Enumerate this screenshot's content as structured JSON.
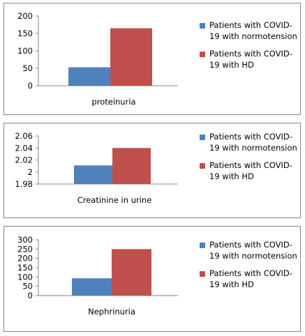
{
  "colors": {
    "series1": "#4f81bd",
    "series2": "#c0504d",
    "axis": "#868686"
  },
  "chart_data": [
    {
      "type": "bar",
      "categories": [
        "proteinuria"
      ],
      "series": [
        {
          "name": "Patients with COVID-19 with normotension",
          "values": [
            53
          ]
        },
        {
          "name": "Patients with COVID-19 with HD",
          "values": [
            165
          ]
        }
      ],
      "ylim": [
        0,
        200
      ],
      "yticks": [
        "0",
        "50",
        "100",
        "150",
        "200"
      ],
      "grid": false,
      "legend_position": "right"
    },
    {
      "type": "bar",
      "categories": [
        "Creatinine in urine"
      ],
      "series": [
        {
          "name": "Patients with COVID-19 with normotension",
          "values": [
            2.011
          ]
        },
        {
          "name": "Patients with COVID-19 with HD",
          "values": [
            2.04
          ]
        }
      ],
      "ylim": [
        1.98,
        2.06
      ],
      "yticks": [
        "1.98",
        "2",
        "2.02",
        "2.04",
        "2.06"
      ],
      "grid": false,
      "legend_position": "right"
    },
    {
      "type": "bar",
      "categories": [
        "Nephrinuria"
      ],
      "series": [
        {
          "name": "Patients with COVID-19 with normotension",
          "values": [
            93
          ]
        },
        {
          "name": "Patients with COVID-19 with HD",
          "values": [
            250
          ]
        }
      ],
      "ylim": [
        0,
        300
      ],
      "yticks": [
        "0",
        "50",
        "100",
        "150",
        "200",
        "250",
        "300"
      ],
      "grid": false,
      "legend_position": "right"
    }
  ]
}
